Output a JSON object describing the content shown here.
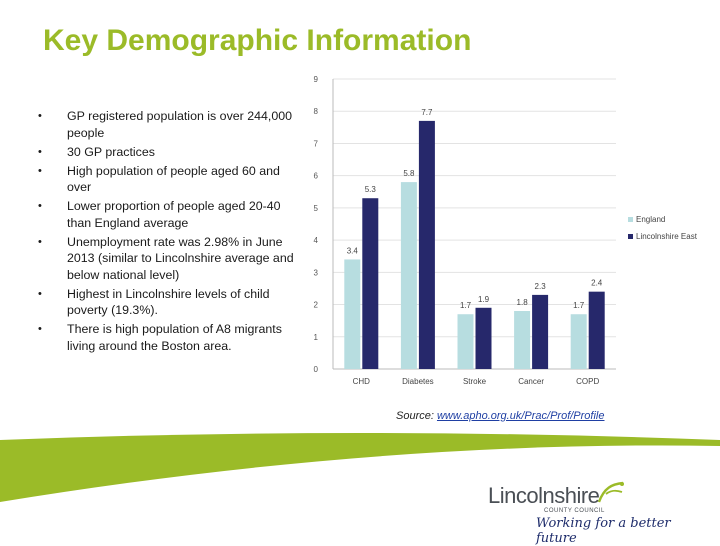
{
  "slide": {
    "title": "Key Demographic Information",
    "bullets": [
      "GP registered population is over 244,000 people",
      "30 GP practices",
      "High population of people aged 60 and over",
      "Lower proportion of people aged 20-40 than England average",
      "Unemployment rate was 2.98% in June 2013 (similar to Lincolnshire average and below national level)",
      "Highest in Lincolnshire levels of child poverty (19.3%).",
      "There is high population of A8 migrants living around the Boston area."
    ],
    "bullet_glyph": "•"
  },
  "source": {
    "prefix": "Source: ",
    "link_text": "www.apho.org.uk/Prac/Prof/Profile"
  },
  "logo": {
    "name": "Lincolnshire",
    "subtitle": "COUNTY COUNCIL",
    "tagline": "Working for a better future"
  },
  "colors": {
    "title": "#9bbb28",
    "england": "#b7dde0",
    "lincolnshire_east": "#26286b",
    "footer_band": "#9bbb28"
  },
  "chart_data": {
    "type": "bar",
    "categories": [
      "CHD",
      "Diabetes",
      "Stroke",
      "Cancer",
      "COPD"
    ],
    "series": [
      {
        "name": "England",
        "values": [
          3.4,
          5.8,
          1.7,
          1.8,
          1.7
        ]
      },
      {
        "name": "Lincolnshire East",
        "values": [
          5.3,
          7.7,
          1.9,
          2.3,
          2.4
        ]
      }
    ],
    "yticks": [
      0,
      1,
      2,
      3,
      4,
      5,
      6,
      7,
      8,
      9
    ],
    "ylim": [
      0,
      9
    ],
    "grid": true,
    "legend_position": "right",
    "data_labels": true
  }
}
